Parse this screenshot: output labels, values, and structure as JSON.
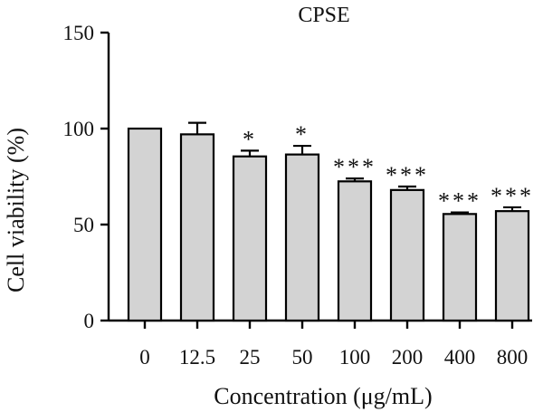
{
  "chart_data": {
    "type": "bar",
    "title": "CPSE",
    "xlabel": "Concentration (μg/mL)",
    "ylabel": "Cell viability (%)",
    "ylim": [
      0,
      150
    ],
    "yticks": [
      0,
      50,
      100,
      150
    ],
    "categories": [
      "0",
      "12.5",
      "25",
      "50",
      "100",
      "200",
      "400",
      "800"
    ],
    "values": [
      100,
      97,
      85.5,
      86.5,
      72.5,
      68,
      55.5,
      57
    ],
    "errors": [
      0,
      6,
      3,
      4.5,
      1.5,
      1.8,
      0.8,
      2
    ],
    "significance": [
      "",
      "",
      "*",
      "*",
      "***",
      "***",
      "***",
      "***"
    ],
    "grid": false,
    "bar_color": "#d3d3d3",
    "edge_color": "#000000"
  }
}
